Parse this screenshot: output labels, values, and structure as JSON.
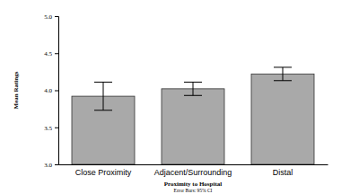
{
  "chart_data": {
    "type": "bar",
    "x_label": "Proximity to Hospital",
    "y_label": "Mean Ratings",
    "annotations": [
      "Error Bars: 95% CI"
    ],
    "categories": [
      "Close Proximity",
      "Adjacent/Surrounding",
      "Distal"
    ],
    "values": [
      3.92,
      4.02,
      4.22
    ],
    "errors": [
      0.19,
      0.09,
      0.09
    ],
    "color": "#a9a9a9",
    "ylim": [
      3,
      5
    ],
    "yticks": [
      {
        "value": 3,
        "label": "3.0"
      },
      3.5,
      {
        "value": 4,
        "label": "4.0"
      },
      4.5,
      {
        "value": 5,
        "label": "5.0"
      }
    ],
    "grid": false
  }
}
